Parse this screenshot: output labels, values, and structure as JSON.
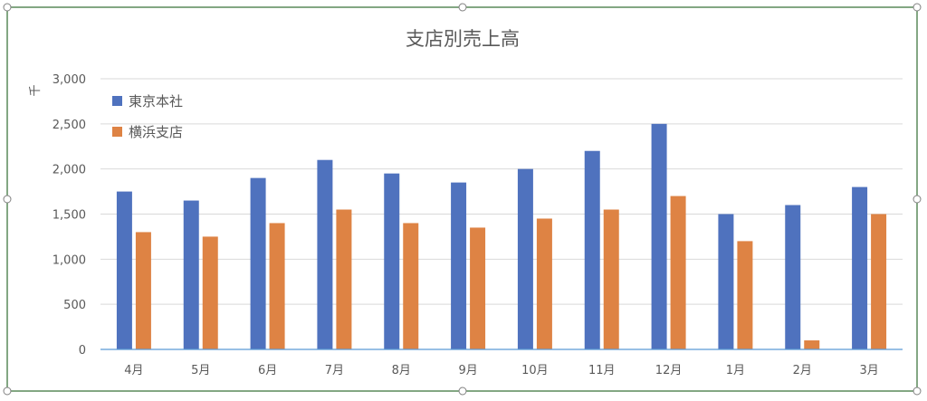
{
  "colors": {
    "series1": "#4F72BE",
    "series2": "#DE8344",
    "grid": "#D9D9D9",
    "axis": "#5B9BD5",
    "text": "#595959",
    "frame": "#5A8A5A"
  },
  "chart_data": {
    "type": "bar",
    "title": "支店別売上高",
    "ylabel": "千",
    "xlabel": "",
    "ylim": [
      0,
      3000
    ],
    "yticks": [
      0,
      500,
      1000,
      1500,
      2000,
      2500,
      3000
    ],
    "ytick_labels": [
      "0",
      "500",
      "1,000",
      "1,500",
      "2,000",
      "2,500",
      "3,000"
    ],
    "grid": true,
    "legend_position": "top-left",
    "categories": [
      "4月",
      "5月",
      "6月",
      "7月",
      "8月",
      "9月",
      "10月",
      "11月",
      "12月",
      "1月",
      "2月",
      "3月"
    ],
    "series": [
      {
        "name": "東京本社",
        "values": [
          1750,
          1650,
          1900,
          2100,
          1950,
          1850,
          2000,
          2200,
          2500,
          1500,
          1600,
          1800
        ]
      },
      {
        "name": "横浜支店",
        "values": [
          1300,
          1250,
          1400,
          1550,
          1400,
          1350,
          1450,
          1550,
          1700,
          1200,
          100,
          1500
        ]
      }
    ]
  }
}
